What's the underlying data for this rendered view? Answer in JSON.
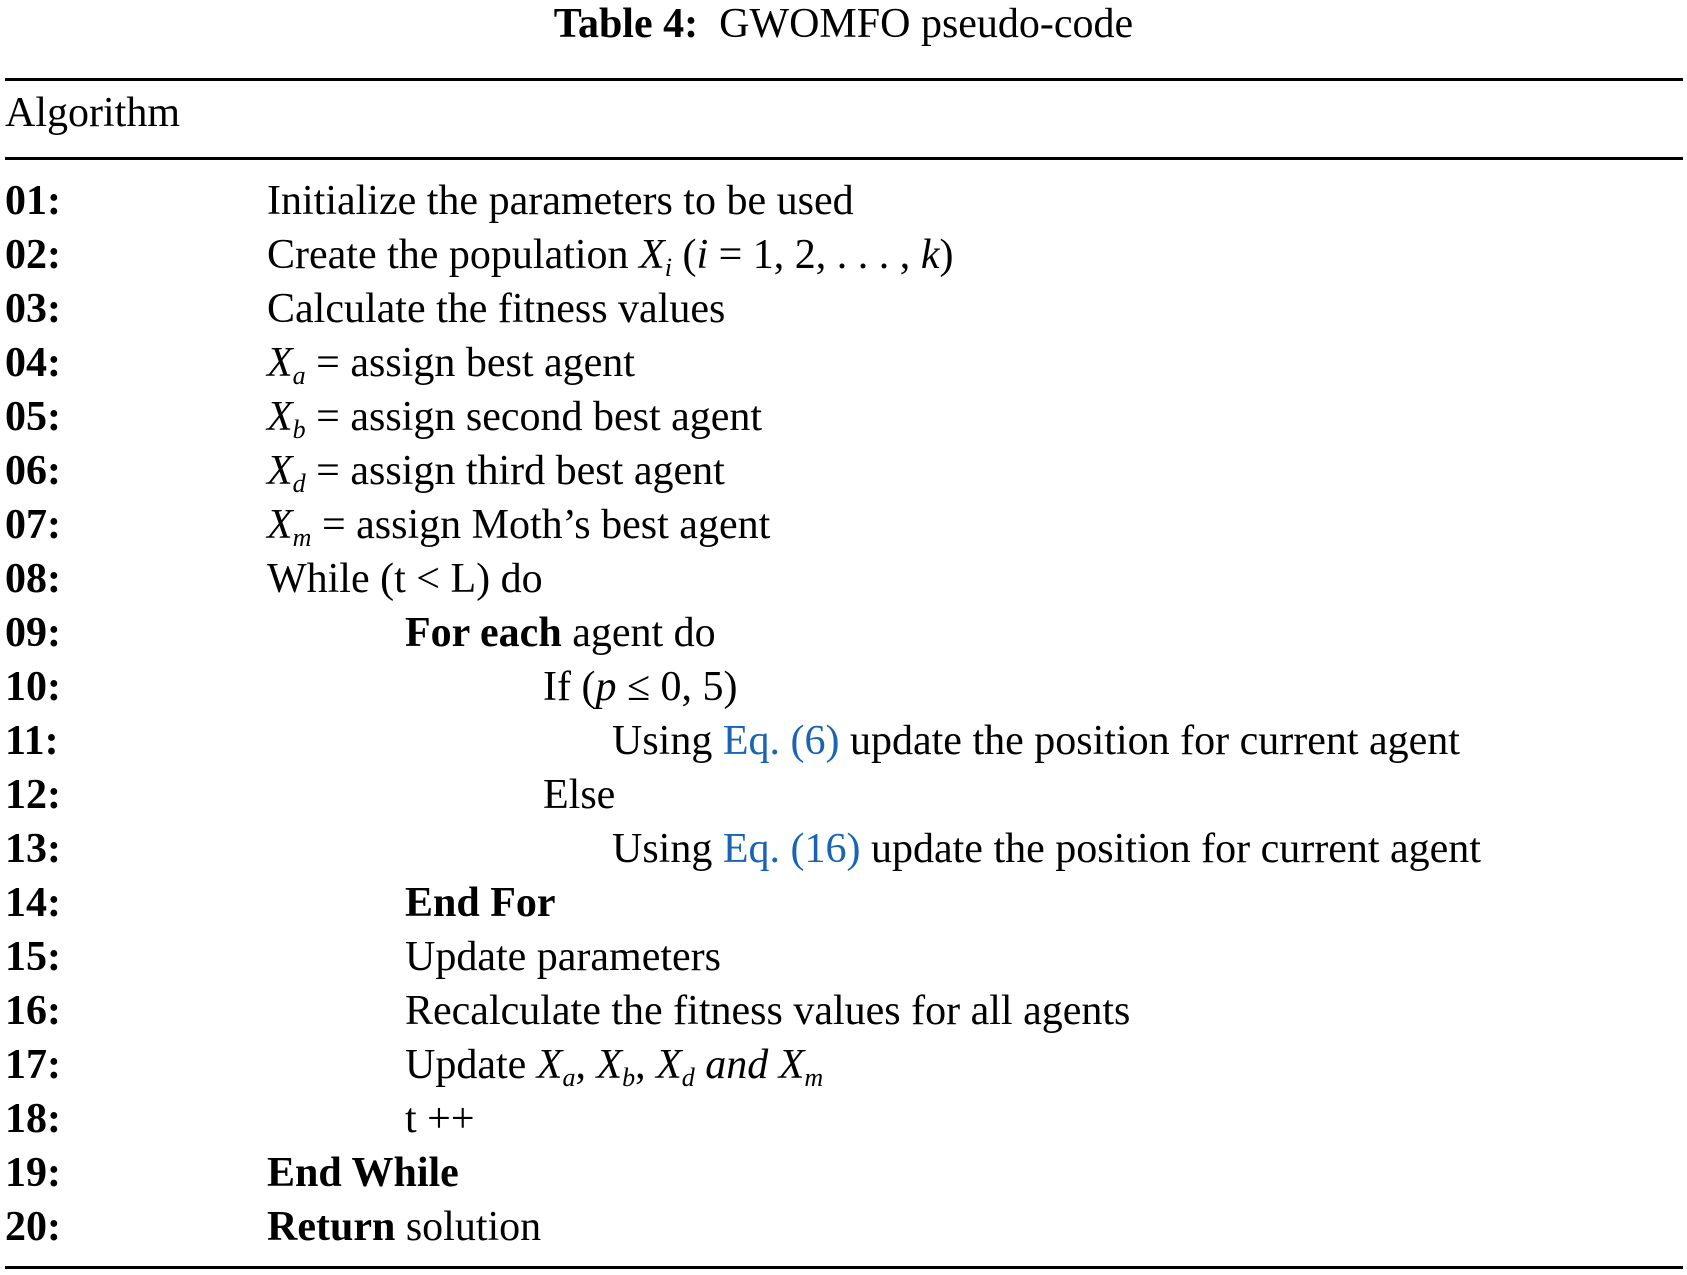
{
  "title": {
    "label": "Table 4:",
    "text": "GWOMFO pseudo-code"
  },
  "header": "Algorithm",
  "link_color": "#1a64b4",
  "rows": [
    {
      "num": "01:",
      "indent": 1,
      "parts": [
        {
          "t": "Initialize the parameters to be used"
        }
      ]
    },
    {
      "num": "02:",
      "indent": 1,
      "parts": [
        {
          "t": "Create the population "
        },
        {
          "m": "X",
          "s": "i"
        },
        {
          "t": " ("
        },
        {
          "i": "i"
        },
        {
          "t": " = 1, 2, . . . , "
        },
        {
          "i": "k"
        },
        {
          "t": ")"
        }
      ]
    },
    {
      "num": "03:",
      "indent": 1,
      "parts": [
        {
          "t": "Calculate the fitness values"
        }
      ]
    },
    {
      "num": "04:",
      "indent": 1,
      "parts": [
        {
          "m": "X",
          "s": "a"
        },
        {
          "t": " = assign best agent"
        }
      ]
    },
    {
      "num": "05:",
      "indent": 1,
      "parts": [
        {
          "m": "X",
          "s": "b"
        },
        {
          "t": " = assign second best agent"
        }
      ]
    },
    {
      "num": "06:",
      "indent": 1,
      "parts": [
        {
          "m": "X",
          "s": "d"
        },
        {
          "t": " = assign third best agent"
        }
      ]
    },
    {
      "num": "07:",
      "indent": 1,
      "parts": [
        {
          "m": "X",
          "s": "m"
        },
        {
          "t": " = assign Moth’s best agent"
        }
      ]
    },
    {
      "num": "08:",
      "indent": 1,
      "parts": [
        {
          "t": "While (t < L) do"
        }
      ]
    },
    {
      "num": "09:",
      "indent": 2,
      "parts": [
        {
          "b": "For each"
        },
        {
          "t": " agent do"
        }
      ]
    },
    {
      "num": "10:",
      "indent": 3,
      "parts": [
        {
          "t": "If ("
        },
        {
          "i": "p"
        },
        {
          "t": " ≤ 0, 5)"
        }
      ]
    },
    {
      "num": "11:",
      "indent": 4,
      "parts": [
        {
          "t": "Using "
        },
        {
          "a": "Eq. (6)"
        },
        {
          "t": " update the position for current agent"
        }
      ]
    },
    {
      "num": "12:",
      "indent": 3,
      "parts": [
        {
          "t": "Else"
        }
      ]
    },
    {
      "num": "13:",
      "indent": 4,
      "parts": [
        {
          "t": "Using "
        },
        {
          "a": "Eq. (16)"
        },
        {
          "t": " update the position for current agent"
        }
      ]
    },
    {
      "num": "14:",
      "indent": 2,
      "parts": [
        {
          "b": "End For"
        }
      ]
    },
    {
      "num": "15:",
      "indent": 2,
      "parts": [
        {
          "t": "Update parameters"
        }
      ]
    },
    {
      "num": "16:",
      "indent": 2,
      "parts": [
        {
          "t": "Recalculate the fitness values for all agents"
        }
      ]
    },
    {
      "num": "17:",
      "indent": 2,
      "parts": [
        {
          "t": "Update "
        },
        {
          "m": "X",
          "s": "a"
        },
        {
          "t": ",  "
        },
        {
          "m": "X",
          "s": "b"
        },
        {
          "t": ",  "
        },
        {
          "m": "X",
          "s": "d"
        },
        {
          "i": " and "
        },
        {
          "m": "X",
          "s": "m"
        }
      ]
    },
    {
      "num": "18:",
      "indent": 2,
      "parts": [
        {
          "t": "t ++"
        }
      ]
    },
    {
      "num": "19:",
      "indent": 1,
      "parts": [
        {
          "b": "End While"
        }
      ]
    },
    {
      "num": "20:",
      "indent": 1,
      "parts": [
        {
          "b": "Return"
        },
        {
          "t": " solution"
        }
      ]
    }
  ]
}
